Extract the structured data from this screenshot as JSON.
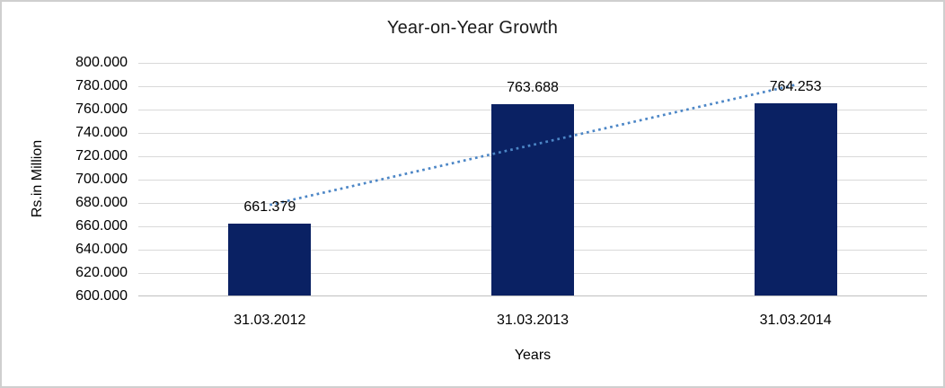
{
  "chart_data": {
    "type": "bar",
    "title": "Year-on-Year Growth",
    "xlabel": "Years",
    "ylabel": "Rs.in Million",
    "categories": [
      "31.03.2012",
      "31.03.2013",
      "31.03.2014"
    ],
    "values": [
      661.379,
      763.688,
      764.253
    ],
    "data_labels": [
      "661.379",
      "763.688",
      "764.253"
    ],
    "ylim": [
      600,
      800
    ],
    "ytick_step": 20,
    "ytick_labels": [
      "800.000",
      "780.000",
      "760.000",
      "740.000",
      "720.000",
      "700.000",
      "680.000",
      "660.000",
      "640.000",
      "620.000",
      "600.000"
    ],
    "grid": true,
    "legend": "none",
    "trendline": {
      "type": "linear",
      "style": "dotted"
    },
    "colors": {
      "bar": "#0a2163",
      "trendline": "#4c86c6",
      "gridline": "#d9d9d9",
      "axis_line": "#bfbfbf",
      "text": "#000000",
      "title_text": "#1a1a1a",
      "frame_border": "#cfcfcf",
      "background": "#ffffff"
    }
  }
}
